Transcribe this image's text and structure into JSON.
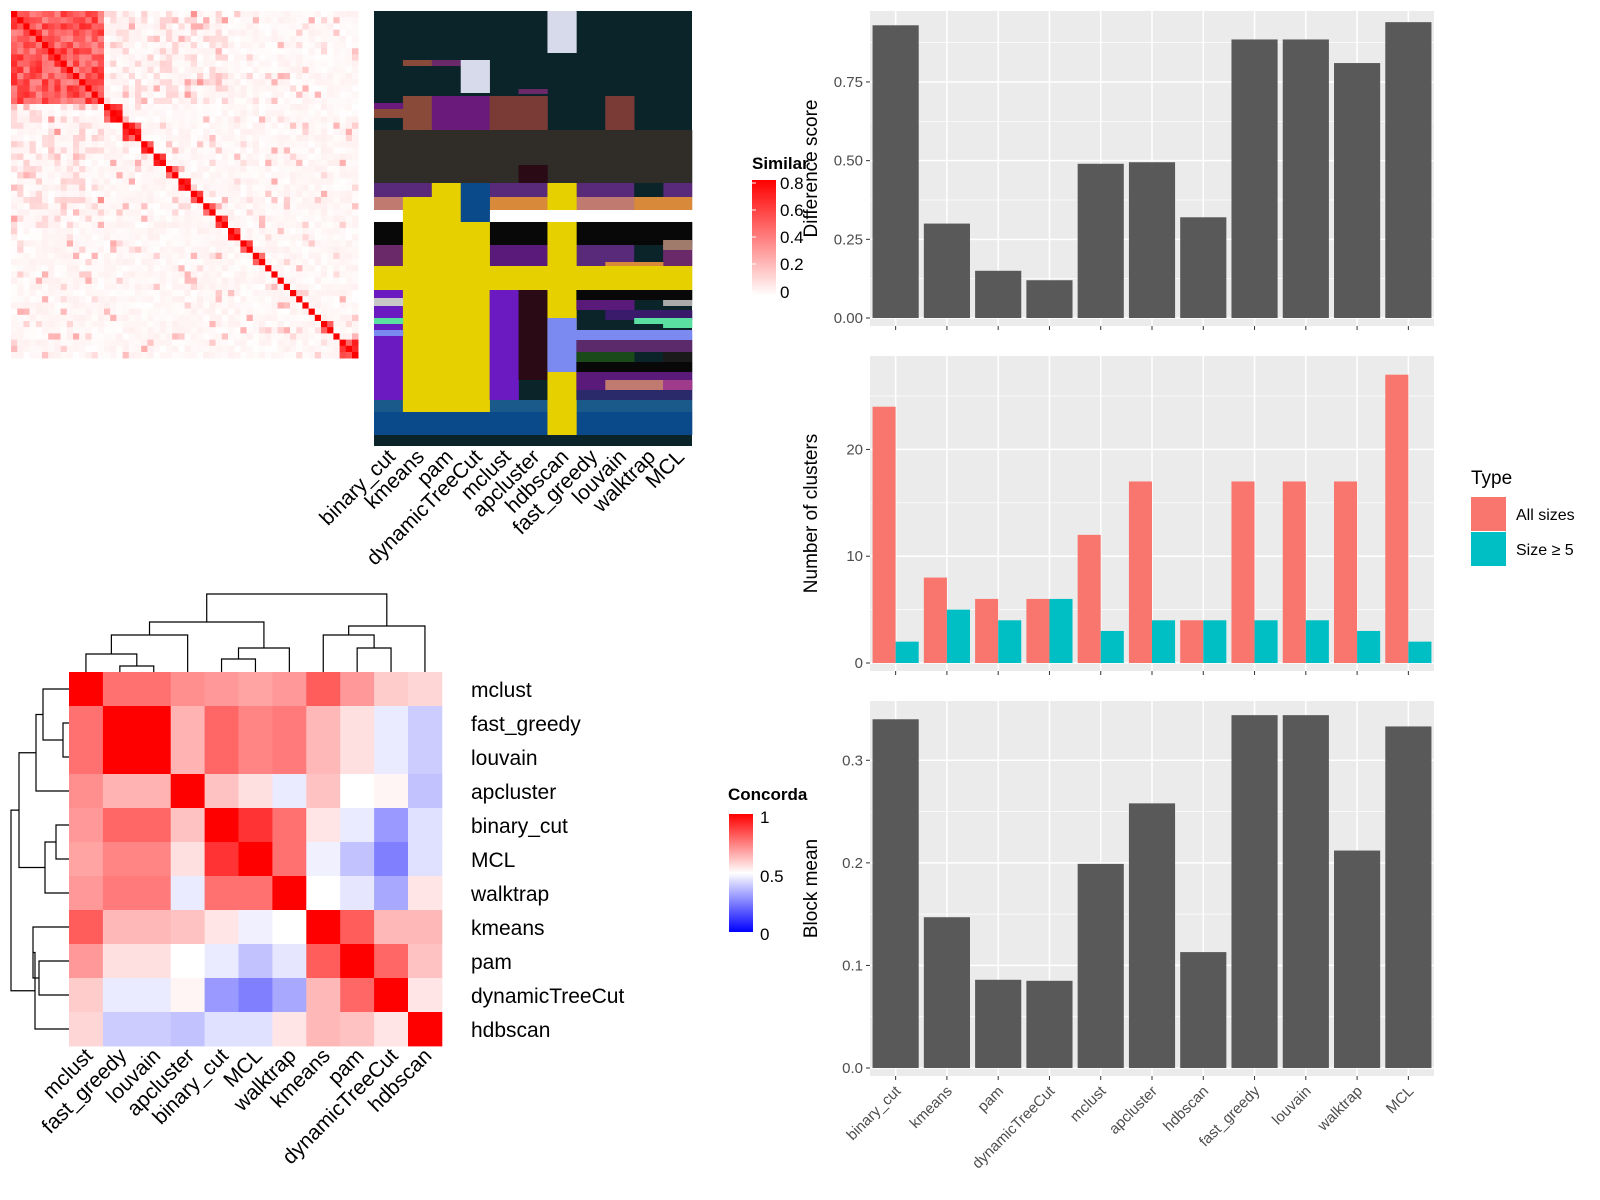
{
  "similarity_legend": {
    "title": "Similarity",
    "ticks": [
      "0.8",
      "0.6",
      "0.4",
      "0.2",
      "0"
    ]
  },
  "concordance_legend": {
    "title": "Concordance",
    "ticks": [
      "1",
      "0.5",
      "0"
    ]
  },
  "type_legend": {
    "title": "Type",
    "entries": [
      "All sizes",
      "Size ≥ 5"
    ],
    "colors": [
      "#F8766D",
      "#00BFC4"
    ]
  },
  "colors": {
    "panel_bg": "#EBEBEB",
    "bar": "#595959",
    "heat_high": "#FF0000",
    "heat_low": "#0000FF"
  },
  "chart_data": [
    {
      "type": "heatmap",
      "description_source": "similarity matrix (top-left), diagonal blocks of high similarity",
      "legend_title": "Similarity",
      "scale": [
        0,
        0.8
      ]
    },
    {
      "type": "heatmap",
      "description_source": "cluster label assignment per method (top-middle)",
      "columns": [
        "binary_cut",
        "kmeans",
        "pam",
        "dynamicTreeCut",
        "mclust",
        "apcluster",
        "hdbscan",
        "fast_greedy",
        "louvain",
        "walktrap",
        "MCL"
      ]
    },
    {
      "type": "heatmap",
      "legend_title": "Concordance",
      "scale": [
        0,
        1
      ],
      "rows": [
        "mclust",
        "fast_greedy",
        "louvain",
        "apcluster",
        "binary_cut",
        "MCL",
        "walktrap",
        "kmeans",
        "pam",
        "dynamicTreeCut",
        "hdbscan"
      ],
      "columns": [
        "mclust",
        "fast_greedy",
        "louvain",
        "apcluster",
        "binary_cut",
        "MCL",
        "walktrap",
        "kmeans",
        "pam",
        "dynamicTreeCut",
        "hdbscan"
      ],
      "values": [
        [
          1.0,
          0.78,
          0.78,
          0.72,
          0.7,
          0.68,
          0.7,
          0.82,
          0.7,
          0.6,
          0.58
        ],
        [
          0.78,
          1.0,
          1.0,
          0.65,
          0.8,
          0.74,
          0.76,
          0.64,
          0.56,
          0.46,
          0.4
        ],
        [
          0.78,
          1.0,
          1.0,
          0.65,
          0.8,
          0.74,
          0.76,
          0.64,
          0.56,
          0.46,
          0.4
        ],
        [
          0.72,
          0.65,
          0.65,
          1.0,
          0.62,
          0.56,
          0.46,
          0.62,
          0.5,
          0.52,
          0.38
        ],
        [
          0.7,
          0.8,
          0.8,
          0.62,
          1.0,
          0.9,
          0.78,
          0.55,
          0.46,
          0.3,
          0.44
        ],
        [
          0.68,
          0.74,
          0.74,
          0.56,
          0.9,
          1.0,
          0.78,
          0.47,
          0.38,
          0.25,
          0.44
        ],
        [
          0.7,
          0.76,
          0.76,
          0.46,
          0.78,
          0.78,
          1.0,
          0.5,
          0.45,
          0.33,
          0.55
        ],
        [
          0.82,
          0.64,
          0.64,
          0.62,
          0.55,
          0.47,
          0.5,
          1.0,
          0.82,
          0.64,
          0.64
        ],
        [
          0.7,
          0.56,
          0.56,
          0.5,
          0.46,
          0.38,
          0.45,
          0.82,
          1.0,
          0.8,
          0.62
        ],
        [
          0.6,
          0.46,
          0.46,
          0.52,
          0.3,
          0.25,
          0.33,
          0.64,
          0.8,
          1.0,
          0.55
        ],
        [
          0.58,
          0.4,
          0.4,
          0.38,
          0.44,
          0.44,
          0.55,
          0.64,
          0.62,
          0.55,
          1.0
        ]
      ]
    },
    {
      "type": "bar",
      "categories": [
        "binary_cut",
        "kmeans",
        "pam",
        "dynamicTreeCut",
        "mclust",
        "apcluster",
        "hdbscan",
        "fast_greedy",
        "louvain",
        "walktrap",
        "MCL"
      ],
      "values": [
        0.93,
        0.3,
        0.15,
        0.12,
        0.49,
        0.495,
        0.32,
        0.885,
        0.885,
        0.81,
        0.94
      ],
      "ylabel": "Difference score",
      "ylim": [
        0,
        0.95
      ],
      "yticks": [
        "0.00",
        "0.25",
        "0.50",
        "0.75"
      ],
      "grid": true
    },
    {
      "type": "bar",
      "categories": [
        "binary_cut",
        "kmeans",
        "pam",
        "dynamicTreeCut",
        "mclust",
        "apcluster",
        "hdbscan",
        "fast_greedy",
        "louvain",
        "walktrap",
        "MCL"
      ],
      "series": [
        {
          "name": "All sizes",
          "values": [
            24,
            8,
            6,
            6,
            12,
            17,
            4,
            17,
            17,
            17,
            27
          ]
        },
        {
          "name": "Size ≥ 5",
          "values": [
            2,
            5,
            4,
            6,
            3,
            4,
            4,
            4,
            4,
            3,
            2
          ]
        }
      ],
      "ylabel": "Number of clusters",
      "ylim": [
        0,
        28
      ],
      "yticks": [
        "0",
        "10",
        "20"
      ],
      "legend": "right",
      "grid": true
    },
    {
      "type": "bar",
      "categories": [
        "binary_cut",
        "kmeans",
        "pam",
        "dynamicTreeCut",
        "mclust",
        "apcluster",
        "hdbscan",
        "fast_greedy",
        "louvain",
        "walktrap",
        "MCL"
      ],
      "values": [
        0.34,
        0.147,
        0.086,
        0.085,
        0.199,
        0.258,
        0.113,
        0.344,
        0.344,
        0.212,
        0.333
      ],
      "ylabel": "Block mean",
      "ylim": [
        0,
        0.35
      ],
      "yticks": [
        "0.0",
        "0.1",
        "0.2",
        "0.3"
      ],
      "grid": true
    }
  ]
}
